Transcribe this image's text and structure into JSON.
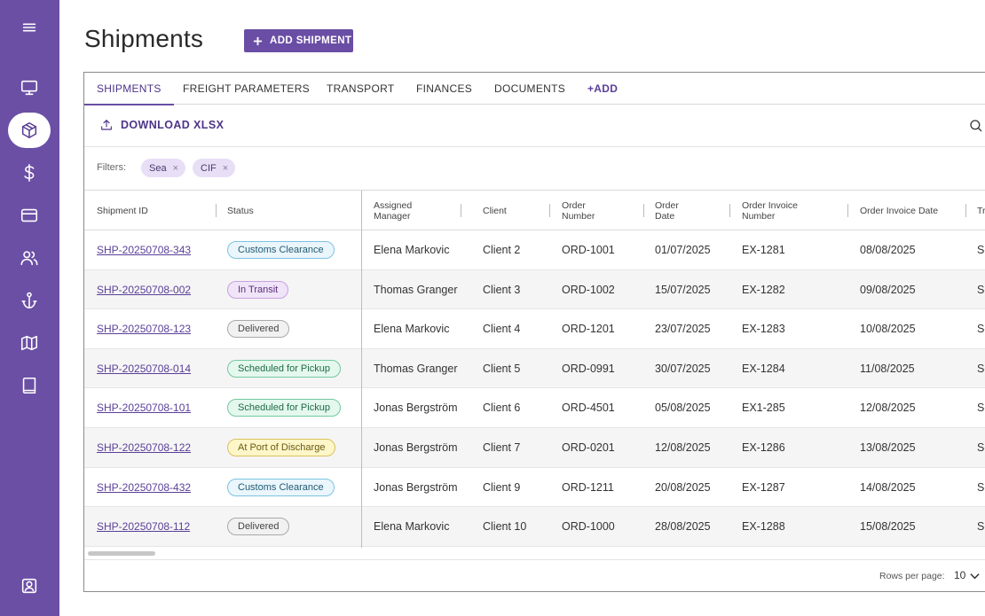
{
  "sidebar": {
    "items": [
      {
        "icon": "menu-icon"
      },
      {
        "icon": "monitor-icon"
      },
      {
        "icon": "package-icon",
        "active": true
      },
      {
        "icon": "dollar-icon"
      },
      {
        "icon": "credit-card-icon"
      },
      {
        "icon": "users-icon"
      },
      {
        "icon": "anchor-icon"
      },
      {
        "icon": "map-icon"
      },
      {
        "icon": "book-icon"
      },
      {
        "icon": "user-profile-icon"
      }
    ]
  },
  "header": {
    "title": "Shipments",
    "add_button_label": "ADD SHIPMENT"
  },
  "tabs": [
    {
      "label": "SHIPMENTS",
      "active": true
    },
    {
      "label": "FREIGHT PARAMETERS"
    },
    {
      "label": "TRANSPORT"
    },
    {
      "label": "FINANCES"
    },
    {
      "label": "DOCUMENTS"
    },
    {
      "label": "+ADD"
    }
  ],
  "toolbar": {
    "download_label": "DOWNLOAD XLSX"
  },
  "filters": {
    "label": "Filters:",
    "chips": [
      "Sea",
      "CIF"
    ],
    "remove_glyph": "×"
  },
  "table": {
    "columns": [
      {
        "label": "Shipment ID"
      },
      {
        "label": "Status"
      },
      {
        "label": "Assigned Manager"
      },
      {
        "label": "Client"
      },
      {
        "label": "Order Number"
      },
      {
        "label": "Order Date"
      },
      {
        "label": "Order Invoice Number"
      },
      {
        "label": "Order Invoice Date"
      },
      {
        "label": "Tr"
      }
    ],
    "rows": [
      {
        "id": "SHP-20250708-343",
        "status": "Customs Clearance",
        "status_kind": "customs",
        "manager": "Elena Markovic",
        "client": "Client 2",
        "order": "ORD-1001",
        "order_date": "01/07/2025",
        "invoice": "EX-1281",
        "invoice_date": "08/08/2025",
        "tr": "Se"
      },
      {
        "id": "SHP-20250708-002",
        "status": "In Transit",
        "status_kind": "transit",
        "manager": "Thomas Granger",
        "client": "Client 3",
        "order": "ORD-1002",
        "order_date": "15/07/2025",
        "invoice": "EX-1282",
        "invoice_date": "09/08/2025",
        "tr": "Se"
      },
      {
        "id": "SHP-20250708-123",
        "status": "Delivered",
        "status_kind": "delivered",
        "manager": "Elena Markovic",
        "client": "Client 4",
        "order": "ORD-1201",
        "order_date": "23/07/2025",
        "invoice": "EX-1283",
        "invoice_date": "10/08/2025",
        "tr": "Se"
      },
      {
        "id": "SHP-20250708-014",
        "status": "Scheduled for Pickup",
        "status_kind": "pickup",
        "manager": "Thomas Granger",
        "client": "Client 5",
        "order": "ORD-0991",
        "order_date": "30/07/2025",
        "invoice": "EX-1284",
        "invoice_date": "11/08/2025",
        "tr": "Se"
      },
      {
        "id": "SHP-20250708-101",
        "status": "Scheduled for Pickup",
        "status_kind": "pickup",
        "manager": "Jonas Bergström",
        "client": "Client 6",
        "order": "ORD-4501",
        "order_date": "05/08/2025",
        "invoice": "EX1-285",
        "invoice_date": "12/08/2025",
        "tr": "Se"
      },
      {
        "id": "SHP-20250708-122",
        "status": "At Port of Discharge",
        "status_kind": "port",
        "manager": "Jonas Bergström",
        "client": "Client 7",
        "order": "ORD-0201",
        "order_date": "12/08/2025",
        "invoice": "EX-1286",
        "invoice_date": "13/08/2025",
        "tr": "Se"
      },
      {
        "id": "SHP-20250708-432",
        "status": "Customs Clearance",
        "status_kind": "customs",
        "manager": "Jonas Bergström",
        "client": "Client 9",
        "order": "ORD-1211",
        "order_date": "20/08/2025",
        "invoice": "EX-1287",
        "invoice_date": "14/08/2025",
        "tr": "Se"
      },
      {
        "id": "SHP-20250708-112",
        "status": "Delivered",
        "status_kind": "delivered",
        "manager": "Elena Markovic",
        "client": "Client 10",
        "order": "ORD-1000",
        "order_date": "28/08/2025",
        "invoice": "EX-1288",
        "invoice_date": "15/08/2025",
        "tr": "Se"
      }
    ]
  },
  "pagination": {
    "rows_per_page_label": "Rows per page:",
    "rows_per_page_value": "10"
  }
}
